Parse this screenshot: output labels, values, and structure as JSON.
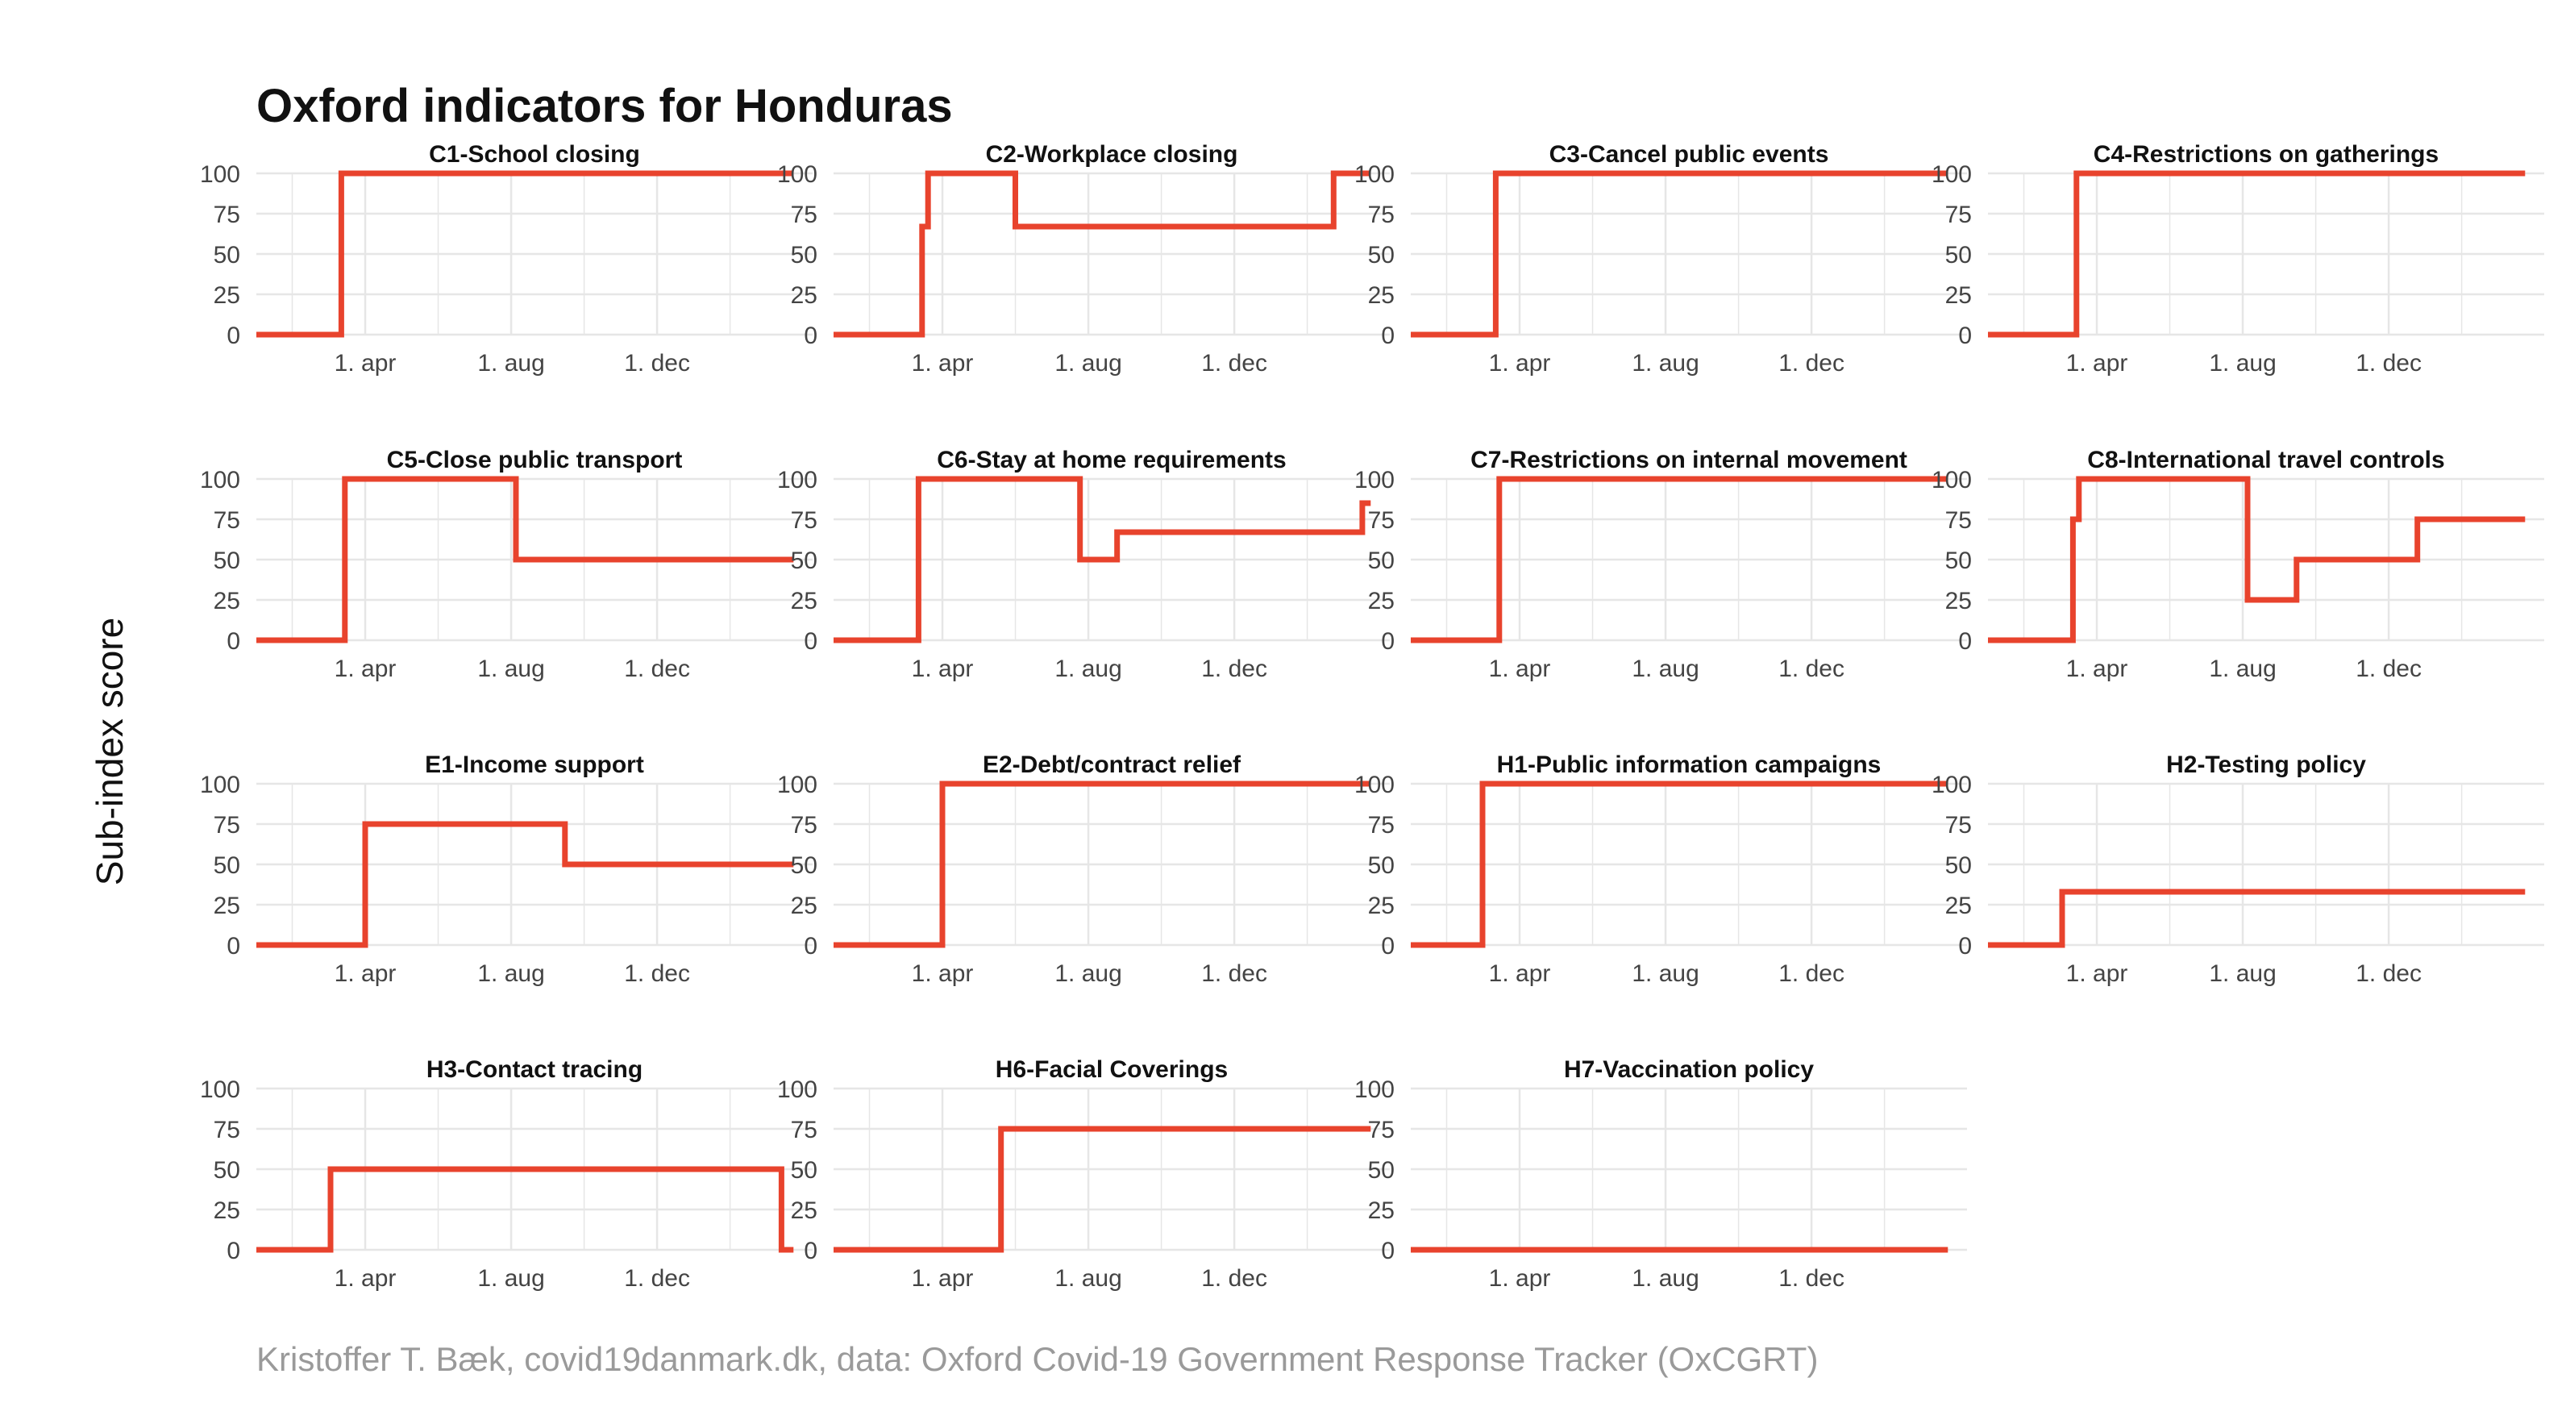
{
  "title": "Oxford indicators for Honduras",
  "caption": "Kristoffer T. Bæk, covid19danmark.dk, data: Oxford Covid-19 Government Response Tracker (OxCGRT)",
  "ylabel": "Sub-index score",
  "line_color": "#e8432d",
  "grid_color": "#e6e6e6",
  "chart_data": {
    "type": "line",
    "facets": true,
    "x_range": [
      "2020-01-01",
      "2021-04-10"
    ],
    "ylim": [
      0,
      100
    ],
    "y_ticks": [
      0,
      25,
      50,
      75,
      100
    ],
    "x_ticks": [
      {
        "date": "2020-04-01",
        "label": "1. apr"
      },
      {
        "date": "2020-08-01",
        "label": "1. aug"
      },
      {
        "date": "2020-12-01",
        "label": "1. dec"
      }
    ],
    "series": [
      {
        "name": "C1-School closing",
        "points": [
          [
            "2020-01-01",
            0
          ],
          [
            "2020-03-12",
            0
          ],
          [
            "2020-03-12",
            100
          ],
          [
            "2021-03-25",
            100
          ]
        ]
      },
      {
        "name": "C2-Workplace closing",
        "points": [
          [
            "2020-01-01",
            0
          ],
          [
            "2020-03-15",
            0
          ],
          [
            "2020-03-15",
            67
          ],
          [
            "2020-03-20",
            67
          ],
          [
            "2020-03-20",
            100
          ],
          [
            "2020-06-01",
            100
          ],
          [
            "2020-06-01",
            67
          ],
          [
            "2021-02-22",
            67
          ],
          [
            "2021-02-22",
            100
          ],
          [
            "2021-03-25",
            100
          ]
        ]
      },
      {
        "name": "C3-Cancel public events",
        "points": [
          [
            "2020-01-01",
            0
          ],
          [
            "2020-03-12",
            0
          ],
          [
            "2020-03-12",
            100
          ],
          [
            "2021-03-25",
            100
          ]
        ]
      },
      {
        "name": "C4-Restrictions on gatherings",
        "points": [
          [
            "2020-01-01",
            0
          ],
          [
            "2020-03-15",
            0
          ],
          [
            "2020-03-15",
            100
          ],
          [
            "2021-03-25",
            100
          ]
        ]
      },
      {
        "name": "C5-Close public transport",
        "points": [
          [
            "2020-01-01",
            0
          ],
          [
            "2020-03-15",
            0
          ],
          [
            "2020-03-15",
            100
          ],
          [
            "2020-08-05",
            100
          ],
          [
            "2020-08-05",
            50
          ],
          [
            "2021-03-25",
            50
          ]
        ]
      },
      {
        "name": "C6-Stay at home requirements",
        "points": [
          [
            "2020-01-01",
            0
          ],
          [
            "2020-03-12",
            0
          ],
          [
            "2020-03-12",
            100
          ],
          [
            "2020-07-25",
            100
          ],
          [
            "2020-07-25",
            50
          ],
          [
            "2020-08-25",
            50
          ],
          [
            "2020-08-25",
            67
          ],
          [
            "2021-03-18",
            67
          ],
          [
            "2021-03-18",
            85
          ],
          [
            "2021-03-25",
            85
          ]
        ]
      },
      {
        "name": "C7-Restrictions on internal movement",
        "points": [
          [
            "2020-01-01",
            0
          ],
          [
            "2020-03-15",
            0
          ],
          [
            "2020-03-15",
            100
          ],
          [
            "2021-03-25",
            100
          ]
        ]
      },
      {
        "name": "C8-International travel controls",
        "points": [
          [
            "2020-01-01",
            0
          ],
          [
            "2020-03-12",
            0
          ],
          [
            "2020-03-12",
            75
          ],
          [
            "2020-03-17",
            75
          ],
          [
            "2020-03-17",
            100
          ],
          [
            "2020-08-05",
            100
          ],
          [
            "2020-08-05",
            25
          ],
          [
            "2020-09-15",
            25
          ],
          [
            "2020-09-15",
            50
          ],
          [
            "2020-12-25",
            50
          ],
          [
            "2020-12-25",
            75
          ],
          [
            "2021-03-25",
            75
          ]
        ]
      },
      {
        "name": "E1-Income support",
        "points": [
          [
            "2020-01-01",
            0
          ],
          [
            "2020-04-01",
            0
          ],
          [
            "2020-04-01",
            75
          ],
          [
            "2020-09-15",
            75
          ],
          [
            "2020-09-15",
            50
          ],
          [
            "2021-03-25",
            50
          ]
        ]
      },
      {
        "name": "E2-Debt/contract relief",
        "points": [
          [
            "2020-01-01",
            0
          ],
          [
            "2020-04-01",
            0
          ],
          [
            "2020-04-01",
            100
          ],
          [
            "2021-03-25",
            100
          ]
        ]
      },
      {
        "name": "H1-Public information campaigns",
        "points": [
          [
            "2020-01-01",
            0
          ],
          [
            "2020-03-01",
            0
          ],
          [
            "2020-03-01",
            100
          ],
          [
            "2021-03-25",
            100
          ]
        ]
      },
      {
        "name": "H2-Testing policy",
        "points": [
          [
            "2020-01-01",
            0
          ],
          [
            "2020-03-03",
            0
          ],
          [
            "2020-03-03",
            33
          ],
          [
            "2021-03-25",
            33
          ]
        ]
      },
      {
        "name": "H3-Contact tracing",
        "points": [
          [
            "2020-01-01",
            0
          ],
          [
            "2020-03-03",
            0
          ],
          [
            "2020-03-03",
            50
          ],
          [
            "2021-03-15",
            50
          ],
          [
            "2021-03-15",
            0
          ],
          [
            "2021-03-25",
            0
          ]
        ]
      },
      {
        "name": "H6-Facial Coverings",
        "points": [
          [
            "2020-01-01",
            0
          ],
          [
            "2020-05-20",
            0
          ],
          [
            "2020-05-20",
            75
          ],
          [
            "2021-03-25",
            75
          ]
        ]
      },
      {
        "name": "H7-Vaccination policy",
        "points": [
          [
            "2020-01-01",
            0
          ],
          [
            "2021-03-25",
            0
          ]
        ]
      }
    ]
  }
}
